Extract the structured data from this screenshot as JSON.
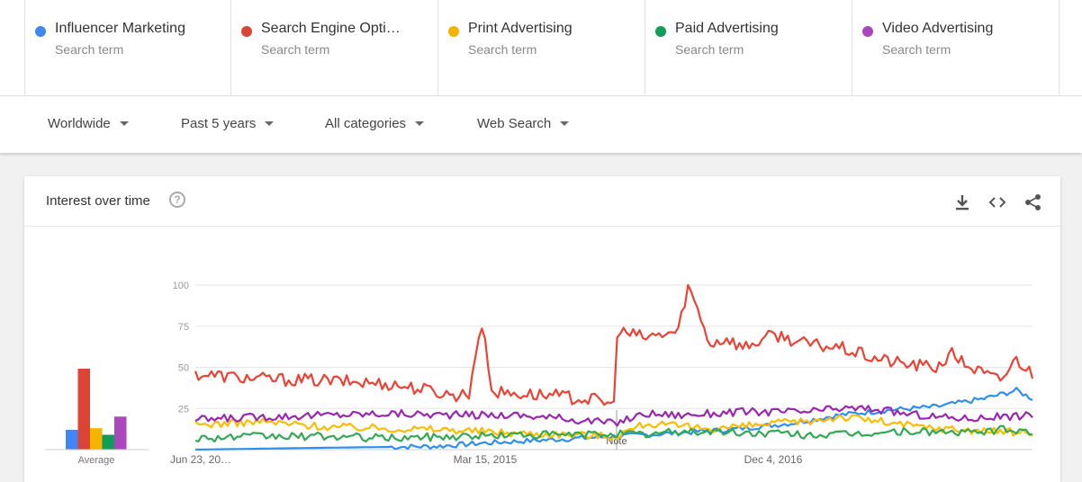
{
  "terms": [
    {
      "name": "Influencer Marketing",
      "sub": "Search term",
      "color": "#4285f4"
    },
    {
      "name": "Search Engine Opti…",
      "sub": "Search term",
      "color": "#db4437"
    },
    {
      "name": "Print Advertising",
      "sub": "Search term",
      "color": "#f4b400"
    },
    {
      "name": "Paid Advertising",
      "sub": "Search term",
      "color": "#0f9d58"
    },
    {
      "name": "Video Advertising",
      "sub": "Search term",
      "color": "#ab47bc"
    }
  ],
  "filters": {
    "region": "Worldwide",
    "time": "Past 5 years",
    "category": "All categories",
    "search_type": "Web Search"
  },
  "card": {
    "title": "Interest over time",
    "help": "?",
    "icons": [
      "download-icon",
      "embed-icon",
      "share-icon"
    ]
  },
  "chart_data": {
    "type": "line",
    "y_ticks": [
      "100",
      "75",
      "50",
      "25"
    ],
    "ylim": [
      0,
      100
    ],
    "x_tick_labels": [
      "Jun 23, 20…",
      "Mar 15, 2015",
      "Dec 4, 2016"
    ],
    "note_label": "Note",
    "average_label": "Average",
    "averages": [
      {
        "name": "Influencer Marketing",
        "value": 12,
        "color": "#4285f4"
      },
      {
        "name": "Search Engine Opti…",
        "value": 49,
        "color": "#db4437"
      },
      {
        "name": "Print Advertising",
        "value": 13,
        "color": "#f4b400"
      },
      {
        "name": "Paid Advertising",
        "value": 9,
        "color": "#0f9d58"
      },
      {
        "name": "Video Advertising",
        "value": 20,
        "color": "#ab47bc"
      }
    ],
    "n_points": 261,
    "series": [
      {
        "name": "Influencer Marketing",
        "color": "#2f8ff0",
        "points": [
          [
            0,
            0
          ],
          [
            35,
            1
          ],
          [
            75,
            2
          ],
          [
            90,
            4
          ],
          [
            110,
            6
          ],
          [
            140,
            9
          ],
          [
            165,
            12
          ],
          [
            185,
            16
          ],
          [
            200,
            21
          ],
          [
            215,
            24
          ],
          [
            230,
            26
          ],
          [
            245,
            31
          ],
          [
            255,
            36
          ],
          [
            260,
            31
          ]
        ]
      },
      {
        "name": "Search Engine Opti…",
        "color": "#ea4335",
        "points": [
          [
            0,
            46
          ],
          [
            20,
            43
          ],
          [
            40,
            42
          ],
          [
            60,
            40
          ],
          [
            70,
            37
          ],
          [
            80,
            33
          ],
          [
            85,
            34
          ],
          [
            88,
            70
          ],
          [
            90,
            70
          ],
          [
            92,
            35
          ],
          [
            110,
            33
          ],
          [
            125,
            30
          ],
          [
            130,
            27
          ],
          [
            131,
            72
          ],
          [
            140,
            68
          ],
          [
            150,
            72
          ],
          [
            153,
            100
          ],
          [
            155,
            90
          ],
          [
            160,
            64
          ],
          [
            165,
            68
          ],
          [
            170,
            62
          ],
          [
            180,
            70
          ],
          [
            190,
            64
          ],
          [
            200,
            62
          ],
          [
            210,
            56
          ],
          [
            220,
            52
          ],
          [
            230,
            50
          ],
          [
            235,
            58
          ],
          [
            240,
            51
          ],
          [
            245,
            46
          ],
          [
            250,
            42
          ],
          [
            255,
            55
          ],
          [
            260,
            46
          ]
        ]
      },
      {
        "name": "Print Advertising",
        "color": "#fbbc04",
        "points": [
          [
            0,
            15
          ],
          [
            20,
            17
          ],
          [
            40,
            14
          ],
          [
            60,
            13
          ],
          [
            80,
            12
          ],
          [
            100,
            10
          ],
          [
            120,
            9
          ],
          [
            130,
            8
          ],
          [
            140,
            16
          ],
          [
            150,
            14
          ],
          [
            160,
            13
          ],
          [
            170,
            14
          ],
          [
            180,
            16
          ],
          [
            190,
            17
          ],
          [
            200,
            20
          ],
          [
            210,
            18
          ],
          [
            220,
            15
          ],
          [
            230,
            13
          ],
          [
            240,
            12
          ],
          [
            250,
            11
          ],
          [
            260,
            10
          ]
        ]
      },
      {
        "name": "Paid Advertising",
        "color": "#34a853",
        "points": [
          [
            0,
            7
          ],
          [
            20,
            8
          ],
          [
            40,
            8
          ],
          [
            60,
            7
          ],
          [
            80,
            8
          ],
          [
            100,
            9
          ],
          [
            120,
            9
          ],
          [
            130,
            10
          ],
          [
            140,
            9
          ],
          [
            150,
            11
          ],
          [
            160,
            11
          ],
          [
            170,
            10
          ],
          [
            180,
            10
          ],
          [
            190,
            9
          ],
          [
            200,
            9
          ],
          [
            210,
            10
          ],
          [
            220,
            11
          ],
          [
            230,
            11
          ],
          [
            240,
            10
          ],
          [
            250,
            12
          ],
          [
            260,
            11
          ]
        ]
      },
      {
        "name": "Video Advertising",
        "color": "#9b27b0",
        "points": [
          [
            0,
            18
          ],
          [
            20,
            20
          ],
          [
            40,
            21
          ],
          [
            60,
            22
          ],
          [
            80,
            21
          ],
          [
            100,
            21
          ],
          [
            120,
            18
          ],
          [
            130,
            16
          ],
          [
            140,
            22
          ],
          [
            150,
            21
          ],
          [
            160,
            22
          ],
          [
            170,
            23
          ],
          [
            180,
            23
          ],
          [
            190,
            23
          ],
          [
            200,
            25
          ],
          [
            210,
            25
          ],
          [
            220,
            22
          ],
          [
            230,
            20
          ],
          [
            240,
            19
          ],
          [
            250,
            20
          ],
          [
            260,
            21
          ]
        ]
      }
    ]
  }
}
